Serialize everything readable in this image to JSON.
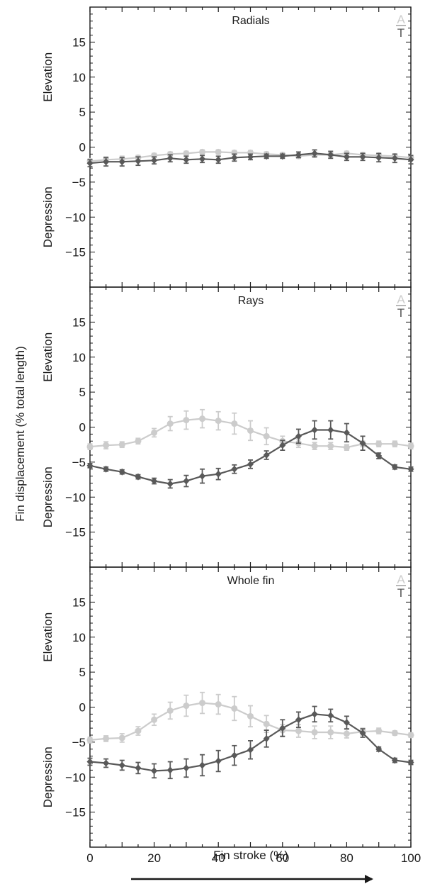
{
  "figure": {
    "ylabel": "Fin displacement (% total length)",
    "xlabel": "Fin stroke (%)",
    "elevation_label": "Elevation",
    "depression_label": "Depression",
    "legend": {
      "a_label": "A",
      "t_label": "T"
    },
    "colors": {
      "A": "#cccccc",
      "T": "#595959",
      "axis": "#1a1a1a"
    }
  },
  "chart_data": [
    {
      "type": "line",
      "title": "Radials",
      "xlabel": "Fin stroke (%)",
      "ylabel": "Fin displacement (% total length)",
      "xlim": [
        0,
        100
      ],
      "ylim": [
        -20,
        20
      ],
      "xticks": [
        0,
        20,
        40,
        60,
        80,
        100
      ],
      "yticks": [
        -15,
        -10,
        -5,
        0,
        5,
        10,
        15
      ],
      "x": [
        0,
        5,
        10,
        15,
        20,
        25,
        30,
        35,
        40,
        45,
        50,
        55,
        60,
        65,
        70,
        75,
        80,
        85,
        90,
        95,
        100
      ],
      "series": [
        {
          "name": "A",
          "values": [
            -2.0,
            -1.8,
            -1.7,
            -1.5,
            -1.2,
            -1.0,
            -0.9,
            -0.7,
            -0.7,
            -0.8,
            -0.8,
            -1.0,
            -1.1,
            -1.3,
            -1.1,
            -1.1,
            -0.9,
            -1.1,
            -1.2,
            -1.3,
            -1.5
          ],
          "errors": [
            0.3,
            0.4,
            0.4,
            0.3,
            0.3,
            0.3,
            0.3,
            0.3,
            0.3,
            0.3,
            0.3,
            0.3,
            0.3,
            0.3,
            0.3,
            0.3,
            0.3,
            0.3,
            0.3,
            0.3,
            0.3
          ]
        },
        {
          "name": "T",
          "values": [
            -2.3,
            -2.1,
            -2.1,
            -2.0,
            -1.9,
            -1.6,
            -1.8,
            -1.7,
            -1.8,
            -1.5,
            -1.4,
            -1.3,
            -1.3,
            -1.1,
            -0.9,
            -1.1,
            -1.4,
            -1.4,
            -1.5,
            -1.6,
            -1.8
          ],
          "errors": [
            0.5,
            0.6,
            0.6,
            0.6,
            0.5,
            0.5,
            0.5,
            0.5,
            0.5,
            0.5,
            0.4,
            0.3,
            0.3,
            0.4,
            0.5,
            0.5,
            0.5,
            0.5,
            0.6,
            0.6,
            0.6
          ]
        }
      ]
    },
    {
      "type": "line",
      "title": "Rays",
      "xlabel": "Fin stroke (%)",
      "ylabel": "Fin displacement (% total length)",
      "xlim": [
        0,
        100
      ],
      "ylim": [
        -20,
        20
      ],
      "xticks": [
        0,
        20,
        40,
        60,
        80,
        100
      ],
      "yticks": [
        -15,
        -10,
        -5,
        0,
        5,
        10,
        15
      ],
      "x": [
        0,
        5,
        10,
        15,
        20,
        25,
        30,
        35,
        40,
        45,
        50,
        55,
        60,
        65,
        70,
        75,
        80,
        85,
        90,
        95,
        100
      ],
      "series": [
        {
          "name": "A",
          "values": [
            -2.8,
            -2.6,
            -2.5,
            -2.0,
            -0.8,
            0.5,
            1.0,
            1.2,
            0.9,
            0.5,
            -0.5,
            -1.3,
            -2.0,
            -2.3,
            -2.7,
            -2.7,
            -2.9,
            -2.4,
            -2.4,
            -2.4,
            -2.7
          ],
          "errors": [
            0.4,
            0.5,
            0.4,
            0.4,
            0.6,
            1.0,
            1.3,
            1.3,
            1.3,
            1.5,
            1.4,
            1.2,
            0.7,
            0.6,
            0.5,
            0.5,
            0.4,
            0.4,
            0.4,
            0.4,
            0.4
          ]
        },
        {
          "name": "T",
          "values": [
            -5.5,
            -6.0,
            -6.4,
            -7.1,
            -7.7,
            -8.1,
            -7.7,
            -7.0,
            -6.7,
            -6.0,
            -5.3,
            -4.0,
            -2.6,
            -1.3,
            -0.4,
            -0.4,
            -0.8,
            -2.3,
            -4.1,
            -5.7,
            -6.0
          ],
          "errors": [
            0.3,
            0.3,
            0.3,
            0.3,
            0.4,
            0.6,
            0.8,
            1.0,
            0.8,
            0.6,
            0.6,
            0.6,
            0.7,
            1.0,
            1.3,
            1.3,
            1.3,
            1.0,
            0.4,
            0.3,
            0.3
          ]
        }
      ]
    },
    {
      "type": "line",
      "title": "Whole fin",
      "xlabel": "Fin stroke (%)",
      "ylabel": "Fin displacement (% total length)",
      "xlim": [
        0,
        100
      ],
      "ylim": [
        -20,
        20
      ],
      "xticks": [
        0,
        20,
        40,
        60,
        80,
        100
      ],
      "yticks": [
        -15,
        -10,
        -5,
        0,
        5,
        10,
        15
      ],
      "x": [
        0,
        5,
        10,
        15,
        20,
        25,
        30,
        35,
        40,
        45,
        50,
        55,
        60,
        65,
        70,
        75,
        80,
        85,
        90,
        95,
        100
      ],
      "series": [
        {
          "name": "A",
          "values": [
            -4.7,
            -4.5,
            -4.4,
            -3.4,
            -1.8,
            -0.5,
            0.2,
            0.6,
            0.4,
            -0.2,
            -1.3,
            -2.4,
            -3.3,
            -3.4,
            -3.6,
            -3.6,
            -3.8,
            -3.5,
            -3.4,
            -3.7,
            -4.0
          ],
          "errors": [
            0.4,
            0.4,
            0.6,
            0.6,
            0.8,
            1.2,
            1.5,
            1.5,
            1.4,
            1.7,
            1.5,
            1.2,
            0.8,
            0.9,
            0.9,
            0.9,
            0.6,
            0.5,
            0.4,
            0.3,
            0.3
          ]
        },
        {
          "name": "T",
          "values": [
            -7.8,
            -8.0,
            -8.3,
            -8.7,
            -9.1,
            -9.0,
            -8.7,
            -8.3,
            -7.7,
            -6.9,
            -6.1,
            -4.5,
            -3.0,
            -1.8,
            -1.0,
            -1.2,
            -2.2,
            -3.7,
            -6.0,
            -7.6,
            -7.9
          ],
          "errors": [
            0.5,
            0.6,
            0.7,
            0.8,
            1.0,
            1.2,
            1.3,
            1.5,
            1.5,
            1.4,
            1.3,
            1.2,
            1.2,
            1.1,
            1.1,
            0.9,
            0.9,
            0.6,
            0.3,
            0.3,
            0.3
          ]
        }
      ]
    }
  ]
}
